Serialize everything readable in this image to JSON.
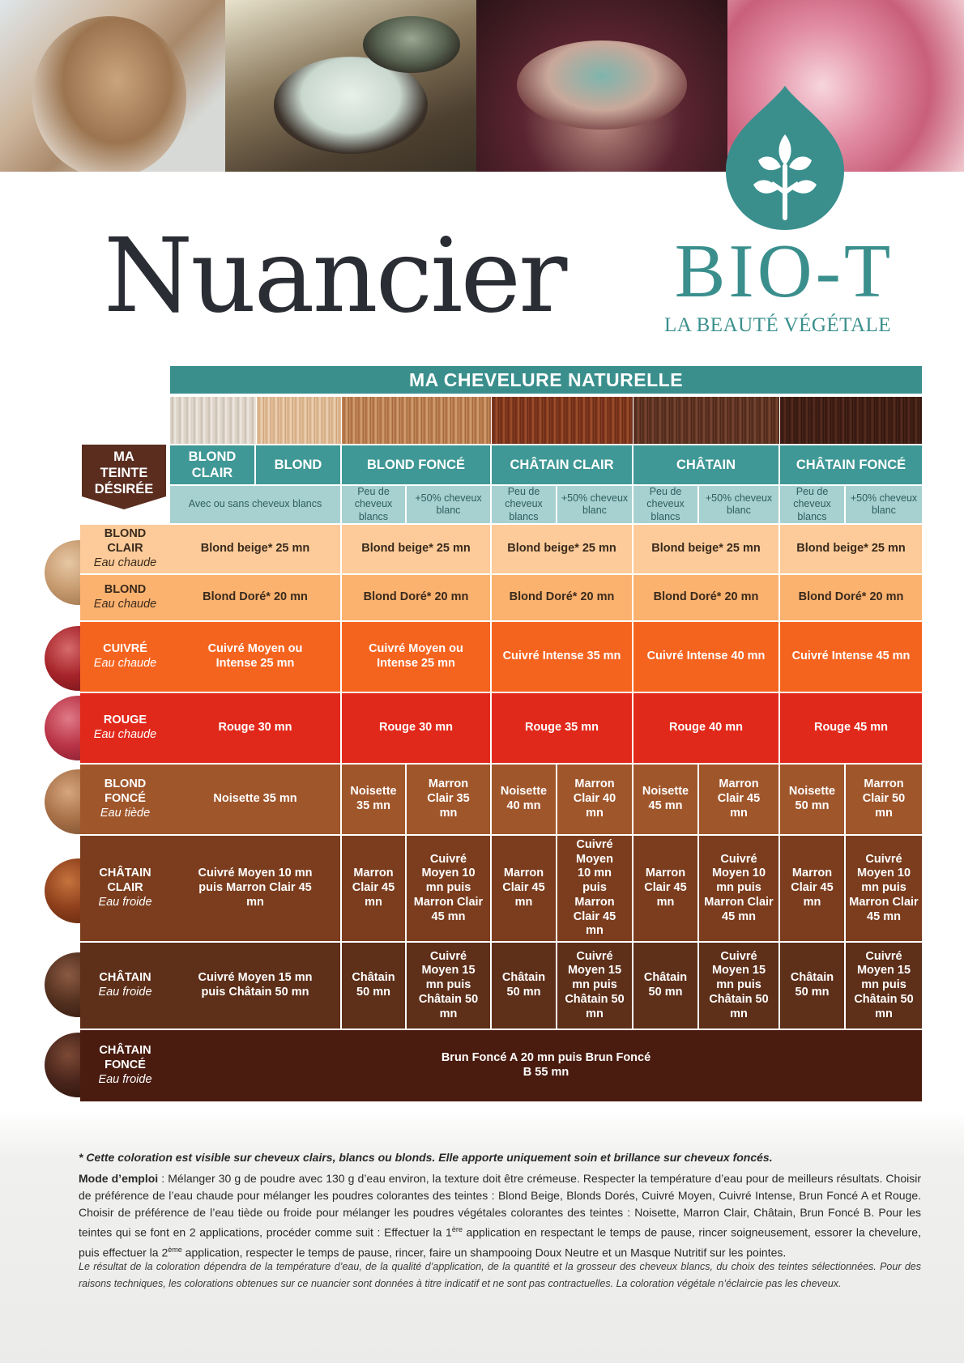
{
  "header": {
    "title": "Nuancier",
    "brand": "BIO-T",
    "tagline": "LA BEAUTÉ VÉGÉTALE"
  },
  "table": {
    "natural_header": "MA CHEVELURE NATURELLE",
    "desired_label": "MA TEINTE DÉSIRÉE",
    "columns": [
      {
        "label": "BLOND CLAIR"
      },
      {
        "label": "BLOND"
      },
      {
        "label": "BLOND FONCÉ"
      },
      {
        "label": "CHÂTAIN CLAIR"
      },
      {
        "label": "CHÂTAIN"
      },
      {
        "label": "CHÂTAIN FONCÉ"
      }
    ],
    "subheaders": [
      "Avec ou sans cheveux blancs",
      "Peu de cheveux blancs",
      "+50% cheveux blanc",
      "Peu de cheveux blancs",
      "+50% cheveux blanc",
      "Peu de cheveux blancs",
      "+50% cheveux blanc",
      "Peu de cheveux blancs",
      "+50% cheveux blanc"
    ],
    "rows": [
      {
        "label": "BLOND CLAIR",
        "water": "Eau chaude",
        "color": "#fccb99",
        "cells": [
          "Blond beige* 25 mn",
          "Blond beige* 25 mn",
          "Blond beige* 25 mn",
          "Blond beige* 25 mn",
          "Blond beige* 25 mn"
        ]
      },
      {
        "label": "BLOND",
        "water": "Eau chaude",
        "color": "#fcb26f",
        "cells": [
          "Blond Doré* 20 mn",
          "Blond Doré* 20 mn",
          "Blond Doré* 20 mn",
          "Blond Doré* 20 mn",
          "Blond Doré* 20 mn"
        ]
      },
      {
        "label": "CUIVRÉ",
        "water": "Eau chaude",
        "color": "#f5641f",
        "cells": [
          "Cuivré Moyen ou Intense 25 mn",
          "Cuivré Moyen ou Intense 25 mn",
          "Cuivré Intense 35 mn",
          "Cuivré Intense 40 mn",
          "Cuivré Intense 45 mn"
        ]
      },
      {
        "label": "ROUGE",
        "water": "Eau chaude",
        "color": "#e1291b",
        "cells": [
          "Rouge 30 mn",
          "Rouge 30 mn",
          "Rouge 35 mn",
          "Rouge 40 mn",
          "Rouge 45 mn"
        ]
      },
      {
        "label": "BLOND FONCÉ",
        "water": "Eau tiède",
        "color": "#a0562b",
        "cells": [
          "Noisette 35 mn",
          "Noisette 35 mn",
          "Marron Clair 35 mn",
          "Noisette 40 mn",
          "Marron Clair 40 mn",
          "Noisette 45 mn",
          "Marron Clair 45 mn",
          "Noisette 50 mn",
          "Marron Clair 50 mn"
        ]
      },
      {
        "label": "CHÂTAIN CLAIR",
        "water": "Eau froide",
        "color": "#7b3d1e",
        "cells": [
          "Cuivré Moyen 10 mn puis Marron Clair 45 mn",
          "Marron Clair 45 mn",
          "Cuivré Moyen 10 mn puis Marron Clair 45 mn",
          "Marron Clair 45 mn",
          "Cuivré Moyen 10 mn puis Marron Clair 45 mn",
          "Marron Clair 45 mn",
          "Cuivré Moyen 10 mn puis Marron Clair 45 mn",
          "Marron Clair 45 mn",
          "Cuivré Moyen 10 mn puis Marron Clair 45 mn"
        ]
      },
      {
        "label": "CHÂTAIN",
        "water": "Eau froide",
        "color": "#5e2f19",
        "cells": [
          "Cuivré Moyen 15 mn puis Châtain 50 mn",
          "Châtain 50 mn",
          "Cuivré Moyen 15 mn puis Châtain 50 mn",
          "Châtain 50 mn",
          "Cuivré Moyen 15 mn puis Châtain 50 mn",
          "Châtain 50 mn",
          "Cuivré Moyen 15 mn puis Châtain 50 mn",
          "Châtain 50 mn",
          "Cuivré Moyen 15 mn puis Châtain 50 mn"
        ]
      },
      {
        "label": "CHÂTAIN FONCÉ",
        "water": "Eau froide",
        "color": "#4a1c10",
        "cells": [
          "Brun Foncé A 20 mn puis Brun Foncé B 55 mn"
        ]
      }
    ]
  },
  "footer": {
    "note": "* Cette coloration est visible sur cheveux clairs, blancs ou blonds. Elle apporte uniquement soin et brillance sur cheveux foncés.",
    "mode_label": "Mode d’emploi",
    "mode_text_1": " : Mélanger 30 g de poudre avec 130 g d’eau environ, la texture doit être crémeuse. Respecter la température d’eau pour de meilleurs résultats. Choisir de préférence de l’eau chaude pour mélanger les poudres colorantes des teintes : Blond Beige, Blonds Dorés, Cuivré Moyen, Cuivré Intense, Brun Foncé A et Rouge. Choisir de préférence de l’eau tiède ou froide pour mélanger les poudres végétales colorantes des teintes : Noisette, Marron Clair, Châtain, Brun Foncé B. Pour les teintes qui se font en 2 applications, procéder comme suit : Effectuer la 1",
    "sup_1": "ère",
    "mode_text_2": " application en respectant le temps de pause, rincer soigneusement, essorer la chevelure, puis effectuer la 2",
    "sup_2": "ème",
    "mode_text_3": " application, respecter le temps de pause, rincer, faire un shampooing Doux Neutre et un Masque Nutritif sur les pointes.",
    "disclaimer": "Le résultat de la coloration dépendra de la température d’eau, de la qualité d’application, de la quantité et la grosseur des cheveux blancs, du choix des teintes sélectionnées. Pour des raisons techniques, les colorations obtenues sur ce nuancier sont données à titre indicatif et ne sont pas contractuelles. La coloration végétale n’éclaircie pas les cheveux."
  }
}
